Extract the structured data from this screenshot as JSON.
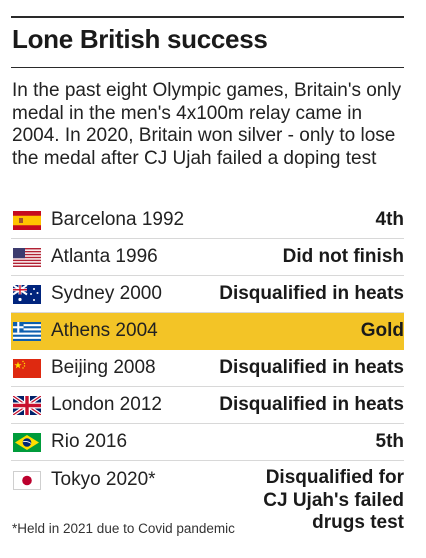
{
  "title": "Lone British success",
  "intro": "In the past eight Olympic games, Britain's only medal in the men's 4x100m relay came in 2004. In 2020, Britain won silver - only to lose the medal after CJ Ujah failed a doping test",
  "rows": [
    {
      "flag": "spain-flag-icon",
      "event": "Barcelona 1992",
      "result": "4th"
    },
    {
      "flag": "usa-flag-icon",
      "event": "Atlanta 1996",
      "result": "Did not finish"
    },
    {
      "flag": "australia-flag-icon",
      "event": "Sydney 2000",
      "result": "Disqualified in heats"
    },
    {
      "flag": "greece-flag-icon",
      "event": "Athens 2004",
      "result": "Gold",
      "highlight": true
    },
    {
      "flag": "china-flag-icon",
      "event": "Beijing 2008",
      "result": "Disqualified in heats"
    },
    {
      "flag": "uk-flag-icon",
      "event": "London 2012",
      "result": "Disqualified in heats"
    },
    {
      "flag": "brazil-flag-icon",
      "event": "Rio 2016",
      "result": "5th"
    },
    {
      "flag": "japan-flag-icon",
      "event": "Tokyo 2020*",
      "result": "Disqualified for CJ Ujah's failed drugs test"
    }
  ],
  "footnote": "*Held in 2021 due to Covid pandemic",
  "colors": {
    "highlight": "#f3c426",
    "text": "#1e1e1e"
  }
}
